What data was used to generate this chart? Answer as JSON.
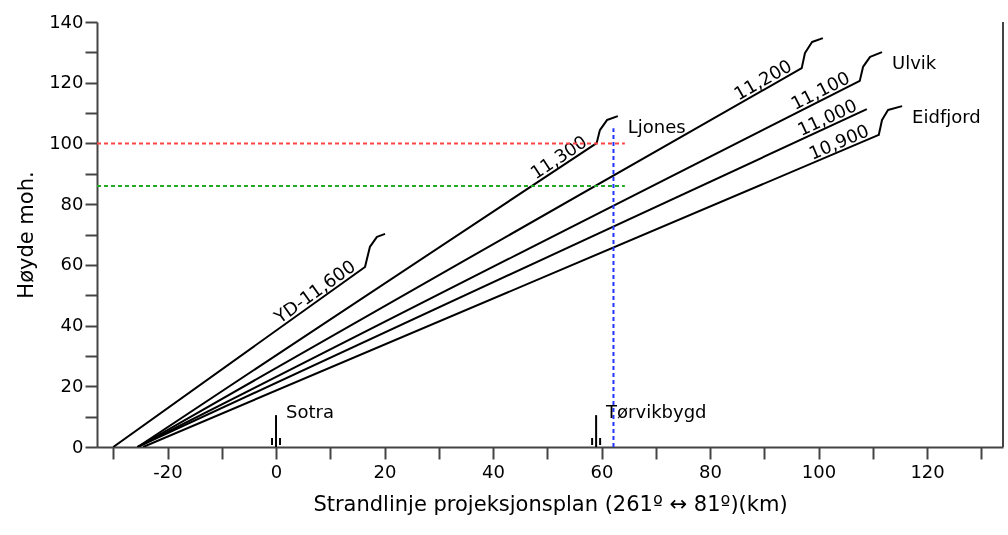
{
  "chart_data": {
    "type": "line",
    "xlabel": "Strandlinje projeksjonsplan (261º ↔ 81º)(km)",
    "ylabel": "Høyde moh.",
    "xlim": [
      -33,
      134
    ],
    "xticks": [
      {
        "value": -30,
        "label": null
      },
      -20,
      {
        "value": -10,
        "label": null
      },
      0,
      {
        "value": 10,
        "label": null
      },
      20,
      {
        "value": 30,
        "label": null
      },
      40,
      {
        "value": 50,
        "label": null
      },
      60,
      {
        "value": 70,
        "label": null
      },
      80,
      {
        "value": 90,
        "label": null
      },
      100,
      {
        "value": 110,
        "label": null
      },
      120,
      {
        "value": 130,
        "label": null
      }
    ],
    "ylim": [
      0,
      140
    ],
    "yticks": [
      0,
      {
        "value": 10,
        "label": null
      },
      20,
      {
        "value": 30,
        "label": null
      },
      40,
      {
        "value": 50,
        "label": null
      },
      60,
      {
        "value": 70,
        "label": null
      },
      80,
      {
        "value": 90,
        "label": null
      },
      100,
      {
        "value": 110,
        "label": null
      },
      120,
      {
        "value": 130,
        "label": null
      },
      140
    ],
    "grid": false,
    "legend": false,
    "series": [
      {
        "name": "YD-11,600",
        "color": "#000000",
        "x": [
          -30,
          16.4,
          17.3,
          18.6,
          20.1
        ],
        "values": [
          0,
          59.3,
          65.9,
          69.2,
          70.2
        ]
      },
      {
        "name": "11,300",
        "color": "#000000",
        "x": [
          -25.5,
          59.1,
          59.7,
          61,
          63
        ],
        "values": [
          0,
          100.1,
          104.4,
          107.7,
          109
        ]
      },
      {
        "name": "11,200",
        "color": "#000000",
        "x": [
          -25.5,
          96.9,
          97.5,
          98.8,
          100.8
        ],
        "values": [
          0,
          124.8,
          129.8,
          133.4,
          134.7
        ]
      },
      {
        "name": "11,100",
        "color": "#000000",
        "x": [
          -25.5,
          107.6,
          108.2,
          109.5,
          111.7
        ],
        "values": [
          0,
          120.6,
          125.2,
          128.5,
          130.1
        ]
      },
      {
        "name": "11,000",
        "color": "#000000",
        "x": [
          -25.5,
          108.9
        ],
        "values": [
          0,
          111.3
        ]
      },
      {
        "name": "10,900",
        "color": "#000000",
        "x": [
          -24.5,
          111.1,
          111.7,
          112.8,
          115.4
        ],
        "values": [
          0,
          102.8,
          107.7,
          111,
          112.3
        ]
      },
      {
        "color": "#ff4444",
        "line_style": "dashed",
        "x": [
          -33,
          64.3
        ],
        "values": [
          100,
          100
        ]
      },
      {
        "color": "#22aa22",
        "line_style": "dashed",
        "x": [
          -33,
          64.3
        ],
        "values": [
          86,
          86
        ]
      },
      {
        "color": "#2233ff",
        "line_style": "dashed",
        "x": [
          62.2,
          62.2
        ],
        "values": [
          0,
          105
        ]
      }
    ],
    "ref_lines": [
      {
        "axis": "x",
        "value": 0,
        "label": "Sotra"
      },
      {
        "axis": "x",
        "value": 59,
        "label": "Tørvikbygd"
      }
    ],
    "annotations": [
      {
        "text": "Ljones",
        "x": 63,
        "y": 109
      },
      {
        "text": "Ulvik",
        "x": 111.7,
        "y": 130.1
      },
      {
        "text": "Eidfjord",
        "x": 115.4,
        "y": 112.3
      }
    ]
  }
}
